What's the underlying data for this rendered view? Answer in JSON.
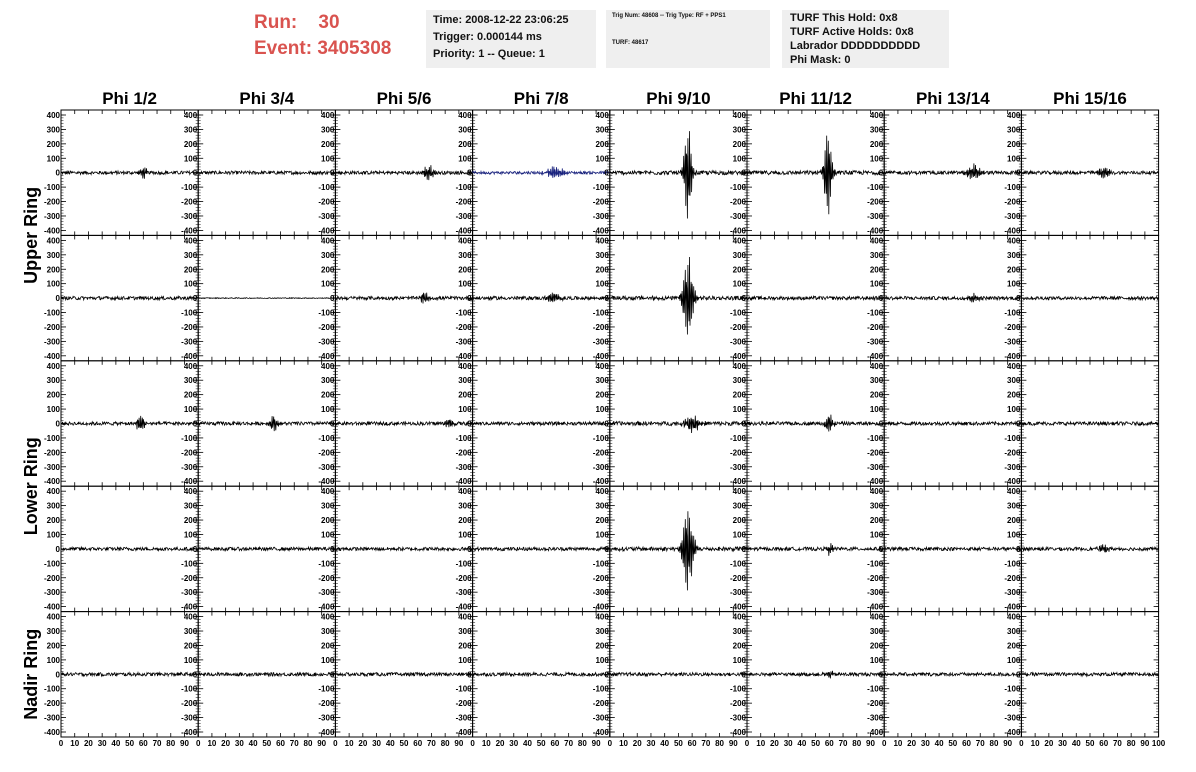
{
  "header": {
    "run_label": "Run:",
    "run_value": "30",
    "event_label": "Event:",
    "event_value": "3405308",
    "time_line": "Time: 2008-12-22 23:06:25",
    "trigger_line": "Trigger: 0.000144 ms",
    "priority_line": "Priority: 1 -- Queue: 1",
    "trig_num_line": "Trig Num: 48608 -- Trig Type: RF + PPS1",
    "turf_num_line": "TURF: 48617",
    "turf_hold_line": "TURF This Hold: 0x8",
    "turf_active_line": "TURF Active Holds: 0x8",
    "labrador_line": "Labrador DDDDDDDDDD",
    "phi_mask_line": "Phi Mask: 0"
  },
  "colors": {
    "header_text": "#d9534f",
    "info_box_bg": "#efefef",
    "trace_default": "#000000",
    "trace_highlight": "#1a237e"
  },
  "chart_data": {
    "type": "line",
    "columns": [
      "Phi 1/2",
      "Phi 3/4",
      "Phi 5/6",
      "Phi 7/8",
      "Phi 9/10",
      "Phi 11/12",
      "Phi 13/14",
      "Phi 15/16"
    ],
    "ring_labels": [
      {
        "label": "Upper Ring",
        "rows": [
          0,
          1
        ]
      },
      {
        "label": "Lower Ring",
        "rows": [
          2,
          3
        ]
      },
      {
        "label": "Nadir Ring",
        "rows": [
          4
        ]
      }
    ],
    "rows": 5,
    "xlim": [
      0,
      100
    ],
    "ylim": [
      -400,
      400
    ],
    "y_ticks": [
      -400,
      -300,
      -200,
      -100,
      0,
      100,
      200,
      300,
      400
    ],
    "x_ticks": [
      0,
      10,
      20,
      30,
      40,
      50,
      60,
      70,
      80,
      90,
      100
    ],
    "grid": false,
    "traces": [
      [
        {
          "noise": 12,
          "bursts": [
            {
              "x": 60,
              "amp": 40,
              "w": 3
            }
          ]
        },
        {
          "noise": 12,
          "bursts": []
        },
        {
          "noise": 12,
          "bursts": [
            {
              "x": 68,
              "amp": 50,
              "w": 4
            }
          ]
        },
        {
          "noise": 10,
          "color": "highlight",
          "bursts": [
            {
              "x": 60,
              "amp": 50,
              "w": 6
            }
          ]
        },
        {
          "noise": 14,
          "bursts": [
            {
              "x": 57,
              "amp": 360,
              "w": 3
            }
          ]
        },
        {
          "noise": 14,
          "bursts": [
            {
              "x": 59,
              "amp": 320,
              "w": 3
            }
          ]
        },
        {
          "noise": 12,
          "bursts": [
            {
              "x": 65,
              "amp": 60,
              "w": 5
            }
          ]
        },
        {
          "noise": 12,
          "bursts": [
            {
              "x": 60,
              "amp": 40,
              "w": 5
            }
          ]
        }
      ],
      [
        {
          "noise": 12,
          "bursts": []
        },
        {
          "noise": 3,
          "bursts": []
        },
        {
          "noise": 12,
          "bursts": [
            {
              "x": 65,
              "amp": 40,
              "w": 4
            }
          ]
        },
        {
          "noise": 12,
          "bursts": [
            {
              "x": 60,
              "amp": 40,
              "w": 5
            }
          ]
        },
        {
          "noise": 14,
          "bursts": [
            {
              "x": 57,
              "amp": 310,
              "w": 4
            }
          ]
        },
        {
          "noise": 12,
          "bursts": []
        },
        {
          "noise": 12,
          "bursts": [
            {
              "x": 65,
              "amp": 35,
              "w": 4
            }
          ]
        },
        {
          "noise": 12,
          "bursts": []
        }
      ],
      [
        {
          "noise": 12,
          "bursts": [
            {
              "x": 58,
              "amp": 70,
              "w": 3
            }
          ]
        },
        {
          "noise": 12,
          "bursts": [
            {
              "x": 55,
              "amp": 60,
              "w": 3
            }
          ]
        },
        {
          "noise": 12,
          "bursts": [
            {
              "x": 83,
              "amp": 40,
              "w": 3
            }
          ]
        },
        {
          "noise": 12,
          "bursts": []
        },
        {
          "noise": 14,
          "bursts": [
            {
              "x": 60,
              "amp": 60,
              "w": 6
            }
          ]
        },
        {
          "noise": 12,
          "bursts": [
            {
              "x": 60,
              "amp": 70,
              "w": 3
            }
          ]
        },
        {
          "noise": 12,
          "bursts": []
        },
        {
          "noise": 12,
          "bursts": []
        }
      ],
      [
        {
          "noise": 12,
          "bursts": []
        },
        {
          "noise": 12,
          "bursts": []
        },
        {
          "noise": 12,
          "bursts": []
        },
        {
          "noise": 12,
          "bursts": []
        },
        {
          "noise": 14,
          "bursts": [
            {
              "x": 57,
              "amp": 330,
              "w": 4
            }
          ]
        },
        {
          "noise": 12,
          "bursts": [
            {
              "x": 60,
              "amp": 40,
              "w": 3
            }
          ]
        },
        {
          "noise": 12,
          "bursts": []
        },
        {
          "noise": 12,
          "bursts": [
            {
              "x": 60,
              "amp": 30,
              "w": 5
            }
          ]
        }
      ],
      [
        {
          "noise": 12,
          "bursts": []
        },
        {
          "noise": 12,
          "bursts": []
        },
        {
          "noise": 12,
          "bursts": []
        },
        {
          "noise": 12,
          "bursts": []
        },
        {
          "noise": 12,
          "bursts": []
        },
        {
          "noise": 12,
          "bursts": [
            {
              "x": 60,
              "amp": 30,
              "w": 3
            }
          ]
        },
        {
          "noise": 12,
          "bursts": []
        },
        {
          "noise": 12,
          "bursts": []
        }
      ]
    ]
  }
}
